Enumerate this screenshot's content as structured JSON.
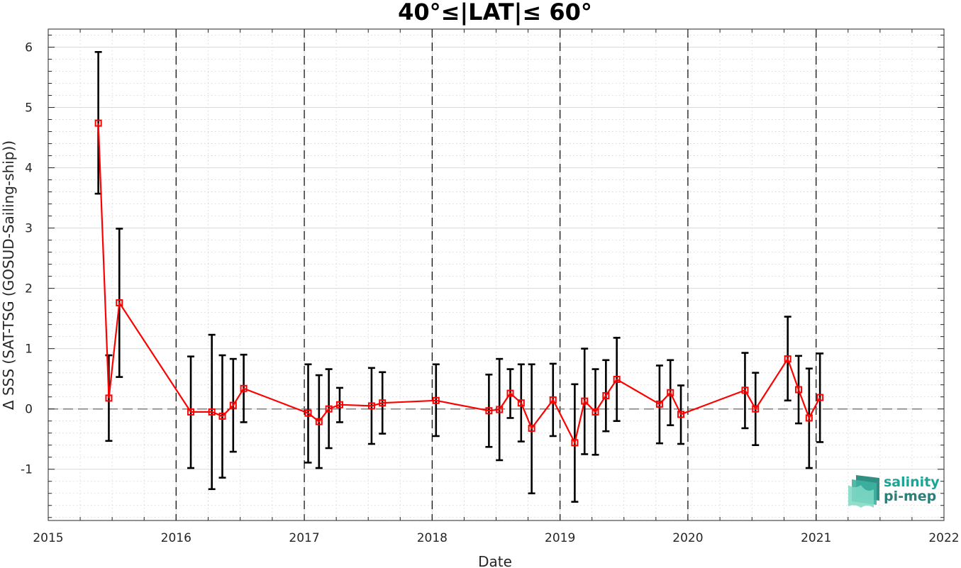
{
  "chart_data": {
    "type": "line",
    "title": "40°≤|LAT|≤ 60°",
    "xlabel": "Date",
    "ylabel": "Δ SSS (SAT-TSG (GOSUD-Sailing-ship))",
    "xlim": [
      "2015-01-01",
      "2022-01-01"
    ],
    "ylim": [
      -1.85,
      6.3
    ],
    "x_ticks": [
      "2015",
      "2016",
      "2017",
      "2018",
      "2019",
      "2020",
      "2021",
      "2022"
    ],
    "y_ticks": [
      "-1",
      "0",
      "1",
      "2",
      "3",
      "4",
      "5",
      "6"
    ],
    "y_tick_values": [
      -1,
      0,
      1,
      2,
      3,
      4,
      5,
      6
    ],
    "year_lines": [
      "2016",
      "2017",
      "2018",
      "2019",
      "2020",
      "2021"
    ],
    "zero_line": 0,
    "grid": true,
    "series": [
      {
        "color": "#ff0000",
        "error_bar_color": "#000000",
        "marker": "square",
        "points": [
          {
            "x": "2015-05-24",
            "y": 4.74,
            "lo": 3.57,
            "hi": 5.92
          },
          {
            "x": "2015-06-23",
            "y": 0.18,
            "lo": -0.53,
            "hi": 0.89
          },
          {
            "x": "2015-07-23",
            "y": 1.76,
            "lo": 0.53,
            "hi": 2.99
          },
          {
            "x": "2016-02-12",
            "y": -0.05,
            "lo": -0.98,
            "hi": 0.87
          },
          {
            "x": "2016-04-12",
            "y": -0.05,
            "lo": -1.33,
            "hi": 1.23
          },
          {
            "x": "2016-05-12",
            "y": -0.12,
            "lo": -1.14,
            "hi": 0.89
          },
          {
            "x": "2016-06-12",
            "y": 0.06,
            "lo": -0.71,
            "hi": 0.83
          },
          {
            "x": "2016-07-12",
            "y": 0.34,
            "lo": -0.22,
            "hi": 0.9
          },
          {
            "x": "2017-01-12",
            "y": -0.07,
            "lo": -0.89,
            "hi": 0.74
          },
          {
            "x": "2017-02-12",
            "y": -0.21,
            "lo": -0.98,
            "hi": 0.56
          },
          {
            "x": "2017-03-12",
            "y": 0.0,
            "lo": -0.65,
            "hi": 0.66
          },
          {
            "x": "2017-04-12",
            "y": 0.07,
            "lo": -0.22,
            "hi": 0.35
          },
          {
            "x": "2017-07-12",
            "y": 0.05,
            "lo": -0.58,
            "hi": 0.68
          },
          {
            "x": "2017-08-12",
            "y": 0.1,
            "lo": -0.41,
            "hi": 0.61
          },
          {
            "x": "2018-01-12",
            "y": 0.14,
            "lo": -0.45,
            "hi": 0.74
          },
          {
            "x": "2018-06-12",
            "y": -0.03,
            "lo": -0.63,
            "hi": 0.57
          },
          {
            "x": "2018-07-12",
            "y": -0.01,
            "lo": -0.85,
            "hi": 0.83
          },
          {
            "x": "2018-08-12",
            "y": 0.26,
            "lo": -0.15,
            "hi": 0.66
          },
          {
            "x": "2018-09-12",
            "y": 0.1,
            "lo": -0.54,
            "hi": 0.74
          },
          {
            "x": "2018-10-12",
            "y": -0.32,
            "lo": -1.4,
            "hi": 0.74
          },
          {
            "x": "2018-12-12",
            "y": 0.15,
            "lo": -0.45,
            "hi": 0.75
          },
          {
            "x": "2019-02-12",
            "y": -0.56,
            "lo": -1.54,
            "hi": 0.41
          },
          {
            "x": "2019-03-12",
            "y": 0.13,
            "lo": -0.75,
            "hi": 1.0
          },
          {
            "x": "2019-04-12",
            "y": -0.05,
            "lo": -0.76,
            "hi": 0.66
          },
          {
            "x": "2019-05-12",
            "y": 0.22,
            "lo": -0.37,
            "hi": 0.81
          },
          {
            "x": "2019-06-12",
            "y": 0.49,
            "lo": -0.2,
            "hi": 1.18
          },
          {
            "x": "2019-10-12",
            "y": 0.08,
            "lo": -0.57,
            "hi": 0.72
          },
          {
            "x": "2019-11-12",
            "y": 0.27,
            "lo": -0.27,
            "hi": 0.81
          },
          {
            "x": "2019-12-12",
            "y": -0.09,
            "lo": -0.58,
            "hi": 0.39
          },
          {
            "x": "2020-06-12",
            "y": 0.31,
            "lo": -0.32,
            "hi": 0.93
          },
          {
            "x": "2020-07-12",
            "y": 0.0,
            "lo": -0.6,
            "hi": 0.6
          },
          {
            "x": "2020-10-12",
            "y": 0.83,
            "lo": 0.14,
            "hi": 1.53
          },
          {
            "x": "2020-11-12",
            "y": 0.32,
            "lo": -0.24,
            "hi": 0.88
          },
          {
            "x": "2020-12-12",
            "y": -0.15,
            "lo": -0.98,
            "hi": 0.67
          },
          {
            "x": "2021-01-12",
            "y": 0.19,
            "lo": -0.55,
            "hi": 0.92
          }
        ]
      }
    ]
  },
  "logo": {
    "line1": "salinity",
    "line2": "pi-mep",
    "color1": "#1aa596",
    "color2": "#2a7f78"
  }
}
